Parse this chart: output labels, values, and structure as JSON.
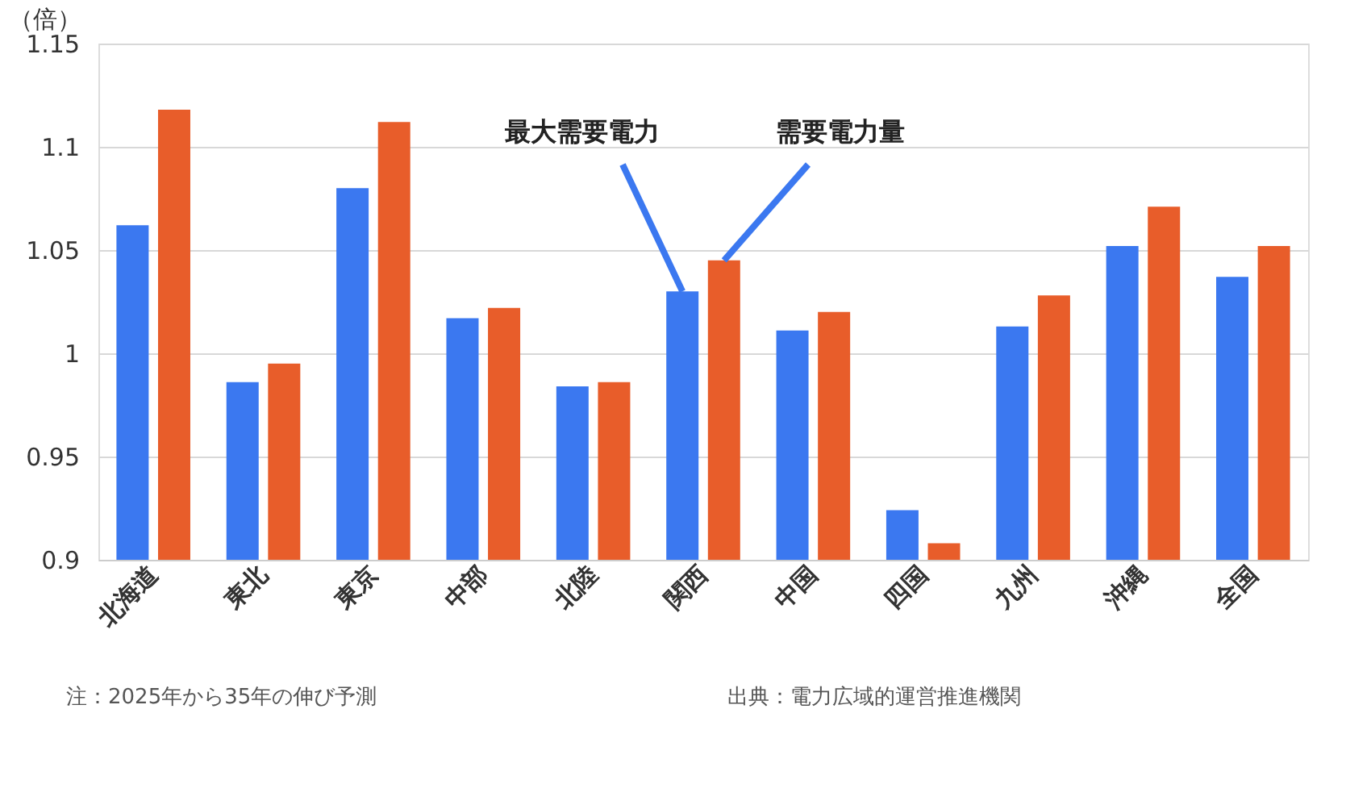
{
  "chart_data": {
    "type": "bar",
    "ylabel": "（倍）",
    "categories": [
      "北海道",
      "東北",
      "東京",
      "中部",
      "北陸",
      "関西",
      "中国",
      "四国",
      "九州",
      "沖縄",
      "全国"
    ],
    "series": [
      {
        "name": "最大需要電力",
        "color": "#3b78f0",
        "values": [
          1.062,
          0.986,
          1.08,
          1.017,
          0.984,
          1.03,
          1.011,
          0.924,
          1.013,
          1.052,
          1.037
        ]
      },
      {
        "name": "需要電力量",
        "color": "#e85d2a",
        "values": [
          1.118,
          0.995,
          1.112,
          1.022,
          0.986,
          1.045,
          1.02,
          0.908,
          1.028,
          1.071,
          1.052
        ]
      }
    ],
    "ylim": [
      0.9,
      1.15
    ],
    "yticks": [
      0.9,
      0.95,
      1,
      1.05,
      1.1,
      1.15
    ],
    "grid": "y",
    "legend": false,
    "annotations": [
      "注：2025年から35年の伸び予測",
      "出典：電力広域的運営推進機関"
    ]
  }
}
